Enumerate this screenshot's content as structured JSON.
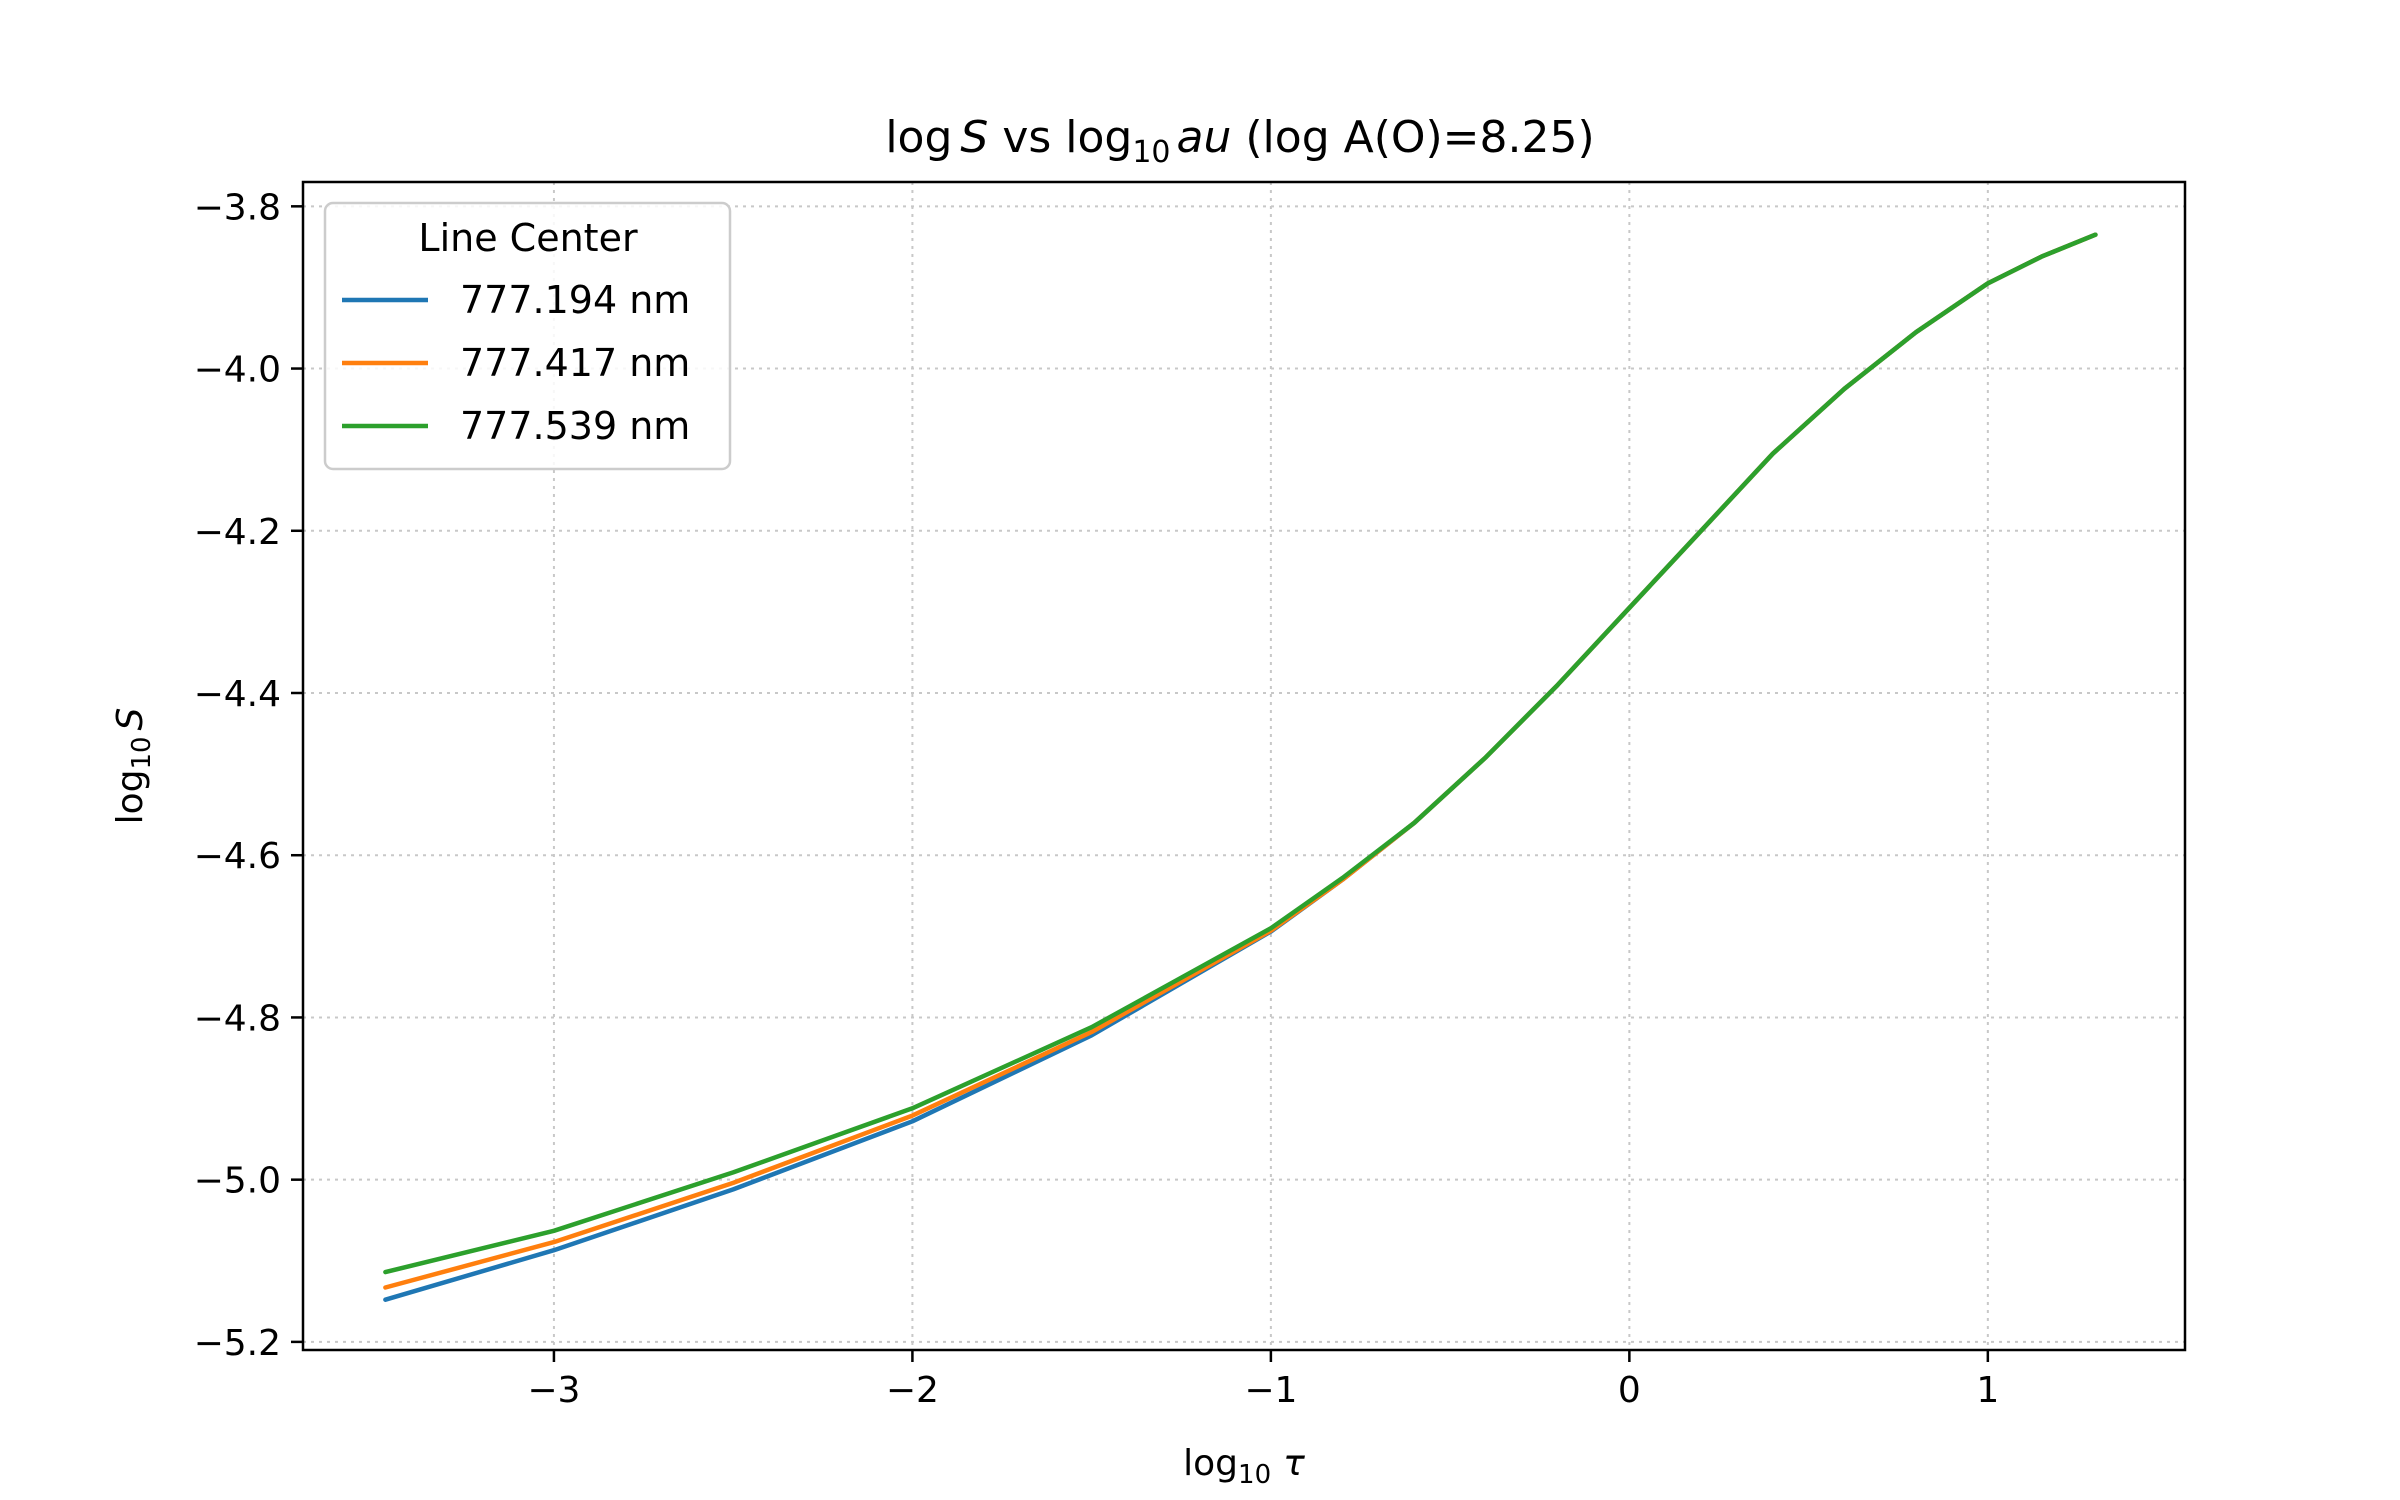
{
  "chart_data": {
    "type": "line",
    "title_parts": {
      "log": "log",
      "S": "S",
      "vs": " vs ",
      "log10_base": "log",
      "log10_sub": "10",
      "tau": "au",
      "rest": " (log A(O)=8.25)"
    },
    "xlabel": {
      "main": "log",
      "sub": "10",
      "sym": "τ"
    },
    "ylabel": {
      "main": "log",
      "sub": "10",
      "sym": "S"
    },
    "xlim": [
      -3.7,
      1.55
    ],
    "ylim": [
      -5.21,
      -3.77
    ],
    "x_ticks": [
      {
        "value": -3,
        "label": "−3"
      },
      {
        "value": -2,
        "label": "−2"
      },
      {
        "value": -1,
        "label": "−1"
      },
      {
        "value": 0,
        "label": "0"
      },
      {
        "value": 1,
        "label": "1"
      }
    ],
    "y_ticks": [
      {
        "value": -3.8,
        "label": "−3.8"
      },
      {
        "value": -4.0,
        "label": "−4.0"
      },
      {
        "value": -4.2,
        "label": "−4.2"
      },
      {
        "value": -4.4,
        "label": "−4.4"
      },
      {
        "value": -4.6,
        "label": "−4.6"
      },
      {
        "value": -4.8,
        "label": "−4.8"
      },
      {
        "value": -5.0,
        "label": "−5.0"
      },
      {
        "value": -5.2,
        "label": "−5.2"
      }
    ],
    "grid": true,
    "legend": {
      "title": "Line Center",
      "placement": "upper-left"
    },
    "x": [
      -3.47,
      -3.0,
      -2.5,
      -2.0,
      -1.5,
      -1.0,
      -0.8,
      -0.6,
      -0.4,
      -0.2,
      0.0,
      0.2,
      0.4,
      0.6,
      0.8,
      1.0,
      1.15,
      1.3
    ],
    "series": [
      {
        "name": "777.194 nm",
        "color": "#1f77b4",
        "values": [
          -5.148,
          -5.087,
          -5.012,
          -4.928,
          -4.822,
          -4.694,
          -4.63,
          -4.56,
          -4.479,
          -4.39,
          -4.295,
          -4.2,
          -4.105,
          -4.025,
          -3.955,
          -3.895,
          -3.862,
          -3.835
        ]
      },
      {
        "name": "777.417 nm",
        "color": "#ff7f0e",
        "values": [
          -5.133,
          -5.077,
          -5.004,
          -4.921,
          -4.818,
          -4.693,
          -4.63,
          -4.56,
          -4.479,
          -4.39,
          -4.295,
          -4.2,
          -4.105,
          -4.025,
          -3.955,
          -3.895,
          -3.862,
          -3.835
        ]
      },
      {
        "name": "777.539 nm",
        "color": "#2ca02c",
        "values": [
          -5.114,
          -5.063,
          -4.991,
          -4.912,
          -4.812,
          -4.69,
          -4.628,
          -4.56,
          -4.479,
          -4.39,
          -4.295,
          -4.2,
          -4.105,
          -4.025,
          -3.955,
          -3.895,
          -3.862,
          -3.835
        ]
      }
    ]
  }
}
